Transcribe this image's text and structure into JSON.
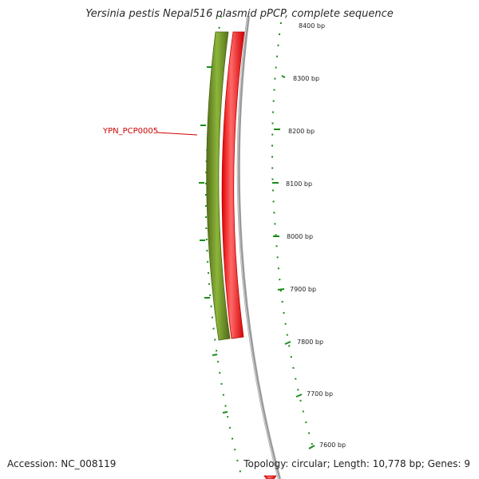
{
  "title": "Yersinia pestis Nepal516 plasmid pPCP, complete sequence",
  "footer": {
    "accession": "Accession: NC_008119",
    "topology": "Topology: circular; Length: 10,778 bp; Genes: 9"
  },
  "map": {
    "tick_labels": [
      "8400 bp",
      "8300 bp",
      "8200 bp",
      "8100 bp",
      "8000 bp",
      "7900 bp",
      "7800 bp",
      "7700 bp",
      "7600 bp"
    ],
    "genes": [
      {
        "label": "YPN_PCP0005",
        "color": "#cc0000"
      }
    ]
  },
  "colors": {
    "forward_track": "#6b8e23",
    "forward_track_highlight": "#9bbf44",
    "reverse_track": "#ff0000",
    "reverse_track_highlight": "#ffaaaa",
    "backbone": "#808080",
    "ticks": "#1a8c1a"
  }
}
